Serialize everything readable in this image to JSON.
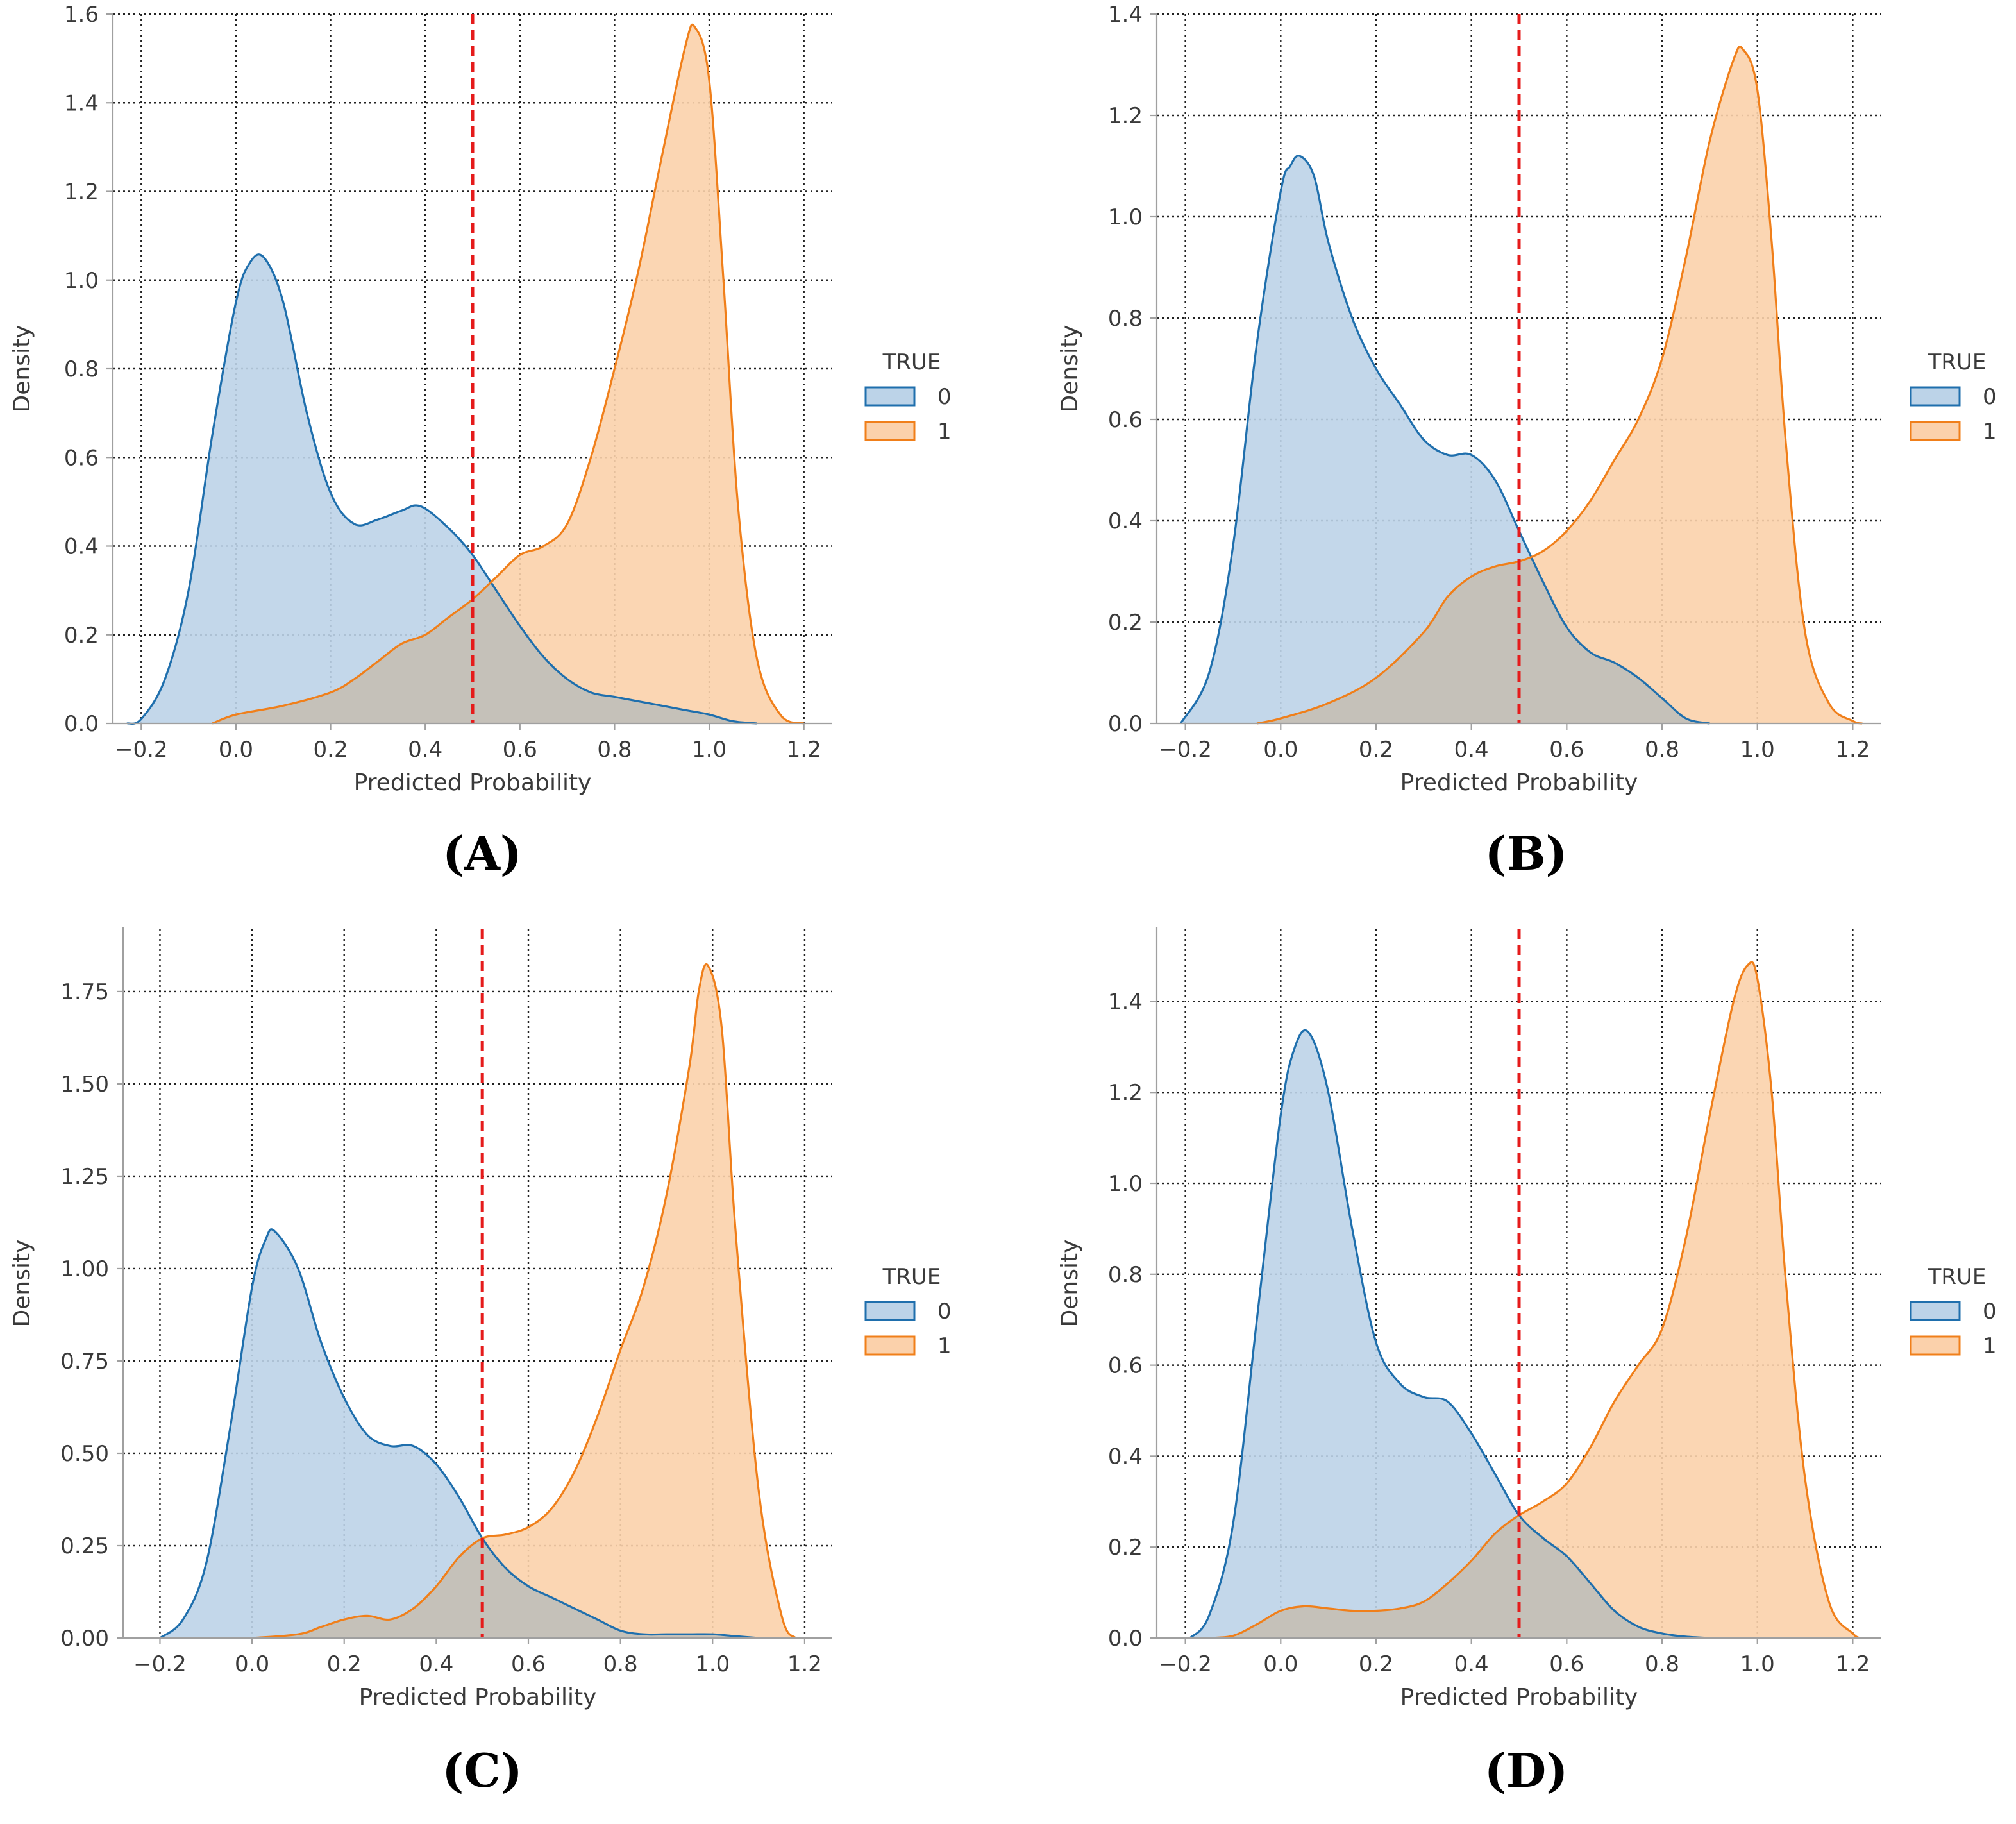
{
  "figure": {
    "legend_title": "TRUE",
    "colors": {
      "class0_line": "#1f6fad",
      "class0_fill": "#bcd3e8",
      "class1_line": "#f07f1a",
      "class1_fill": "#fbd1ab",
      "threshold": "#e51b1b",
      "overlap_tint": "#c5c1b9"
    }
  },
  "chart_data": [
    {
      "type": "area",
      "panel_label": "(A)",
      "xlabel": "Predicted Probability",
      "ylabel": "Density",
      "xlim": [
        -0.26,
        1.26
      ],
      "ylim": [
        0,
        1.6
      ],
      "xticks": [
        -0.2,
        0.0,
        0.2,
        0.4,
        0.6,
        0.8,
        1.0,
        1.2
      ],
      "xtick_labels": [
        "−0.2",
        "0.0",
        "0.2",
        "0.4",
        "0.6",
        "0.8",
        "1.0",
        "1.2"
      ],
      "yticks": [
        0,
        0.2,
        0.4,
        0.6,
        0.8,
        1.0,
        1.2,
        1.4,
        1.6
      ],
      "ytick_labels": [
        "0.0",
        "0.2",
        "0.4",
        "0.6",
        "0.8",
        "1.0",
        "1.2",
        "1.4",
        "1.6"
      ],
      "threshold": 0.5,
      "legend": [
        "0",
        "1"
      ],
      "series": [
        {
          "name": "0",
          "x": [
            -0.23,
            -0.2,
            -0.15,
            -0.1,
            -0.05,
            0,
            0.03,
            0.06,
            0.1,
            0.15,
            0.2,
            0.25,
            0.3,
            0.35,
            0.39,
            0.45,
            0.5,
            0.55,
            0.6,
            0.65,
            0.7,
            0.75,
            0.8,
            0.85,
            0.9,
            0.95,
            1.0,
            1.05,
            1.1
          ],
          "y": [
            0,
            0.01,
            0.1,
            0.3,
            0.65,
            0.95,
            1.04,
            1.05,
            0.95,
            0.7,
            0.52,
            0.45,
            0.46,
            0.48,
            0.49,
            0.44,
            0.38,
            0.3,
            0.22,
            0.15,
            0.1,
            0.07,
            0.06,
            0.05,
            0.04,
            0.03,
            0.02,
            0.005,
            0
          ]
        },
        {
          "name": "1",
          "x": [
            -0.05,
            0,
            0.1,
            0.2,
            0.25,
            0.3,
            0.35,
            0.4,
            0.45,
            0.5,
            0.55,
            0.6,
            0.65,
            0.7,
            0.75,
            0.8,
            0.85,
            0.9,
            0.95,
            0.97,
            1.0,
            1.03,
            1.06,
            1.1,
            1.15,
            1.2
          ],
          "y": [
            0,
            0.02,
            0.04,
            0.07,
            0.1,
            0.14,
            0.18,
            0.2,
            0.24,
            0.28,
            0.33,
            0.38,
            0.4,
            0.45,
            0.6,
            0.8,
            1.02,
            1.28,
            1.53,
            1.57,
            1.45,
            1.0,
            0.5,
            0.15,
            0.02,
            0
          ]
        }
      ]
    },
    {
      "type": "area",
      "panel_label": "(B)",
      "xlabel": "Predicted Probability",
      "ylabel": "Density",
      "xlim": [
        -0.26,
        1.26
      ],
      "ylim": [
        0,
        1.4
      ],
      "xticks": [
        -0.2,
        0.0,
        0.2,
        0.4,
        0.6,
        0.8,
        1.0,
        1.2
      ],
      "xtick_labels": [
        "−0.2",
        "0.0",
        "0.2",
        "0.4",
        "0.6",
        "0.8",
        "1.0",
        "1.2"
      ],
      "yticks": [
        0,
        0.2,
        0.4,
        0.6,
        0.8,
        1.0,
        1.2,
        1.4
      ],
      "ytick_labels": [
        "0.0",
        "0.2",
        "0.4",
        "0.6",
        "0.8",
        "1.0",
        "1.2",
        "1.4"
      ],
      "threshold": 0.5,
      "legend": [
        "0",
        "1"
      ],
      "series": [
        {
          "name": "0",
          "x": [
            -0.21,
            -0.15,
            -0.1,
            -0.05,
            0,
            0.02,
            0.04,
            0.07,
            0.1,
            0.15,
            0.2,
            0.25,
            0.3,
            0.35,
            0.4,
            0.45,
            0.5,
            0.55,
            0.6,
            0.65,
            0.7,
            0.75,
            0.8,
            0.85,
            0.9
          ],
          "y": [
            0,
            0.1,
            0.35,
            0.75,
            1.05,
            1.1,
            1.12,
            1.08,
            0.95,
            0.8,
            0.7,
            0.63,
            0.56,
            0.53,
            0.53,
            0.48,
            0.38,
            0.28,
            0.19,
            0.14,
            0.12,
            0.09,
            0.05,
            0.01,
            0
          ]
        },
        {
          "name": "1",
          "x": [
            -0.05,
            0,
            0.1,
            0.2,
            0.3,
            0.35,
            0.4,
            0.45,
            0.5,
            0.55,
            0.6,
            0.65,
            0.7,
            0.75,
            0.8,
            0.85,
            0.9,
            0.95,
            0.97,
            1.0,
            1.03,
            1.06,
            1.1,
            1.15,
            1.2,
            1.22
          ],
          "y": [
            0,
            0.01,
            0.04,
            0.09,
            0.18,
            0.25,
            0.29,
            0.31,
            0.32,
            0.34,
            0.38,
            0.44,
            0.52,
            0.6,
            0.72,
            0.92,
            1.15,
            1.31,
            1.33,
            1.25,
            0.95,
            0.55,
            0.18,
            0.04,
            0.005,
            0
          ]
        }
      ]
    },
    {
      "type": "area",
      "panel_label": "(C)",
      "xlabel": "Predicted Probability",
      "ylabel": "Density",
      "xlim": [
        -0.28,
        1.26
      ],
      "ylim": [
        0,
        1.92
      ],
      "xticks": [
        -0.2,
        0.0,
        0.2,
        0.4,
        0.6,
        0.8,
        1.0,
        1.2
      ],
      "xtick_labels": [
        "−0.2",
        "0.0",
        "0.2",
        "0.4",
        "0.6",
        "0.8",
        "1.0",
        "1.2"
      ],
      "yticks": [
        0,
        0.25,
        0.5,
        0.75,
        1.0,
        1.25,
        1.5,
        1.75
      ],
      "ytick_labels": [
        "0.00",
        "0.25",
        "0.50",
        "0.75",
        "1.00",
        "1.25",
        "1.50",
        "1.75"
      ],
      "threshold": 0.5,
      "legend": [
        "0",
        "1"
      ],
      "series": [
        {
          "name": "0",
          "x": [
            -0.2,
            -0.15,
            -0.1,
            -0.05,
            0,
            0.03,
            0.05,
            0.1,
            0.15,
            0.2,
            0.25,
            0.3,
            0.35,
            0.4,
            0.45,
            0.5,
            0.55,
            0.6,
            0.65,
            0.7,
            0.75,
            0.8,
            0.85,
            0.9,
            0.95,
            1.0,
            1.05,
            1.1
          ],
          "y": [
            0,
            0.05,
            0.2,
            0.55,
            0.95,
            1.08,
            1.1,
            1.0,
            0.8,
            0.65,
            0.55,
            0.52,
            0.52,
            0.47,
            0.38,
            0.27,
            0.19,
            0.14,
            0.11,
            0.08,
            0.05,
            0.02,
            0.01,
            0.01,
            0.01,
            0.01,
            0.005,
            0
          ]
        },
        {
          "name": "1",
          "x": [
            0,
            0.1,
            0.15,
            0.2,
            0.25,
            0.3,
            0.35,
            0.4,
            0.45,
            0.5,
            0.55,
            0.6,
            0.65,
            0.7,
            0.75,
            0.8,
            0.85,
            0.9,
            0.95,
            0.97,
            0.99,
            1.02,
            1.05,
            1.1,
            1.15,
            1.18
          ],
          "y": [
            0,
            0.01,
            0.03,
            0.05,
            0.06,
            0.05,
            0.08,
            0.14,
            0.22,
            0.27,
            0.28,
            0.3,
            0.35,
            0.45,
            0.6,
            0.78,
            0.95,
            1.2,
            1.55,
            1.75,
            1.82,
            1.65,
            1.1,
            0.4,
            0.06,
            0
          ]
        }
      ]
    },
    {
      "type": "area",
      "panel_label": "(D)",
      "xlabel": "Predicted Probability",
      "ylabel": "Density",
      "xlim": [
        -0.26,
        1.26
      ],
      "ylim": [
        0,
        1.56
      ],
      "xticks": [
        -0.2,
        0.0,
        0.2,
        0.4,
        0.6,
        0.8,
        1.0,
        1.2
      ],
      "xtick_labels": [
        "−0.2",
        "0.0",
        "0.2",
        "0.4",
        "0.6",
        "0.8",
        "1.0",
        "1.2"
      ],
      "yticks": [
        0,
        0.2,
        0.4,
        0.6,
        0.8,
        1.0,
        1.2,
        1.4
      ],
      "ytick_labels": [
        "0.0",
        "0.2",
        "0.4",
        "0.6",
        "0.8",
        "1.0",
        "1.2",
        "1.4"
      ],
      "threshold": 0.5,
      "legend": [
        "0",
        "1"
      ],
      "series": [
        {
          "name": "0",
          "x": [
            -0.19,
            -0.15,
            -0.1,
            -0.05,
            0,
            0.03,
            0.06,
            0.1,
            0.15,
            0.2,
            0.25,
            0.3,
            0.35,
            0.4,
            0.45,
            0.5,
            0.55,
            0.6,
            0.65,
            0.7,
            0.75,
            0.8,
            0.85,
            0.9
          ],
          "y": [
            0,
            0.05,
            0.25,
            0.7,
            1.15,
            1.3,
            1.33,
            1.2,
            0.9,
            0.65,
            0.56,
            0.53,
            0.52,
            0.45,
            0.36,
            0.27,
            0.22,
            0.18,
            0.12,
            0.06,
            0.025,
            0.01,
            0.003,
            0
          ]
        },
        {
          "name": "1",
          "x": [
            -0.15,
            -0.1,
            -0.05,
            0,
            0.05,
            0.1,
            0.15,
            0.2,
            0.25,
            0.3,
            0.35,
            0.4,
            0.45,
            0.5,
            0.55,
            0.6,
            0.65,
            0.7,
            0.75,
            0.8,
            0.85,
            0.9,
            0.95,
            0.98,
            1.0,
            1.03,
            1.06,
            1.1,
            1.15,
            1.2,
            1.22
          ],
          "y": [
            0,
            0.005,
            0.03,
            0.06,
            0.07,
            0.065,
            0.06,
            0.06,
            0.065,
            0.08,
            0.12,
            0.17,
            0.23,
            0.27,
            0.3,
            0.34,
            0.42,
            0.52,
            0.6,
            0.68,
            0.88,
            1.15,
            1.4,
            1.48,
            1.45,
            1.2,
            0.78,
            0.35,
            0.08,
            0.01,
            0
          ]
        }
      ]
    }
  ]
}
